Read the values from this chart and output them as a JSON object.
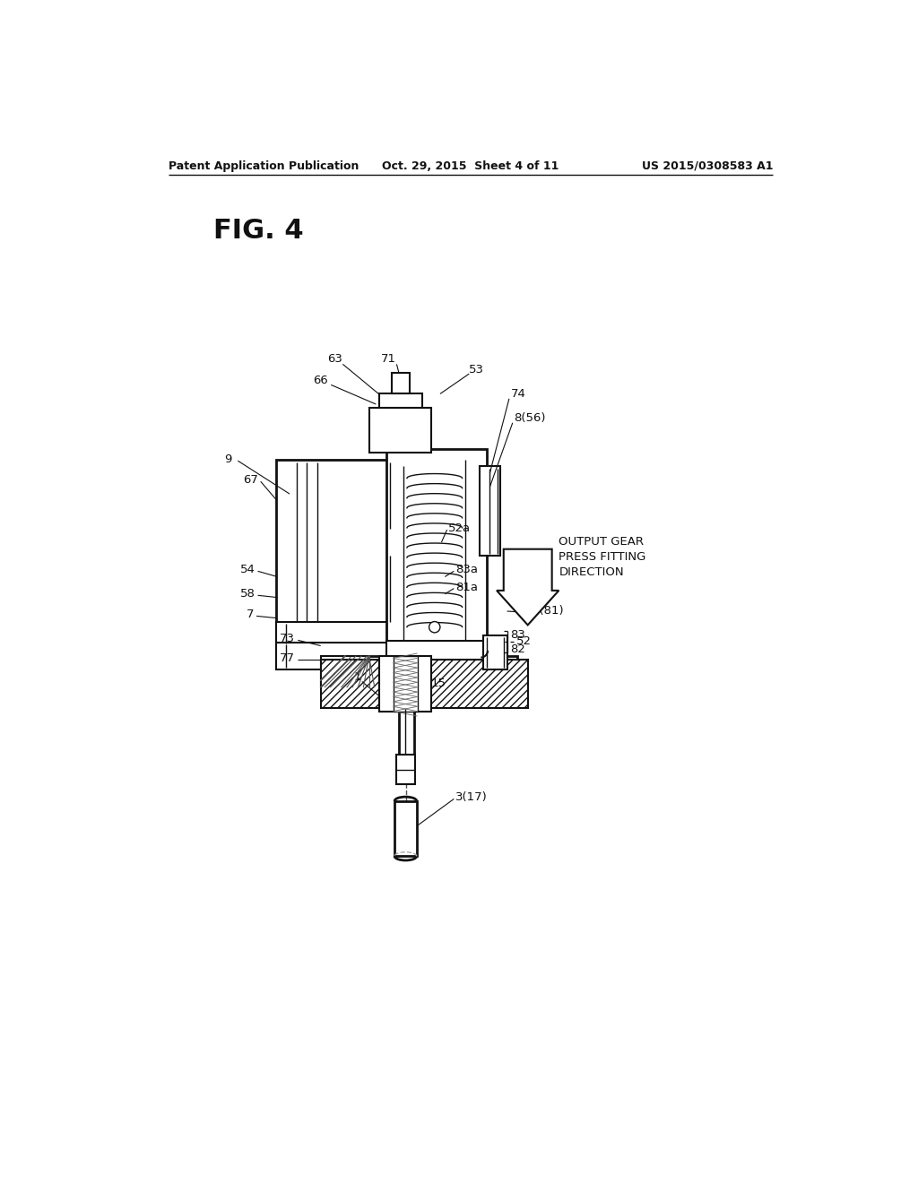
{
  "background_color": "#ffffff",
  "header_left": "Patent Application Publication",
  "header_center": "Oct. 29, 2015  Sheet 4 of 11",
  "header_right": "US 2015/0308583 A1",
  "fig_label": "FIG. 4"
}
